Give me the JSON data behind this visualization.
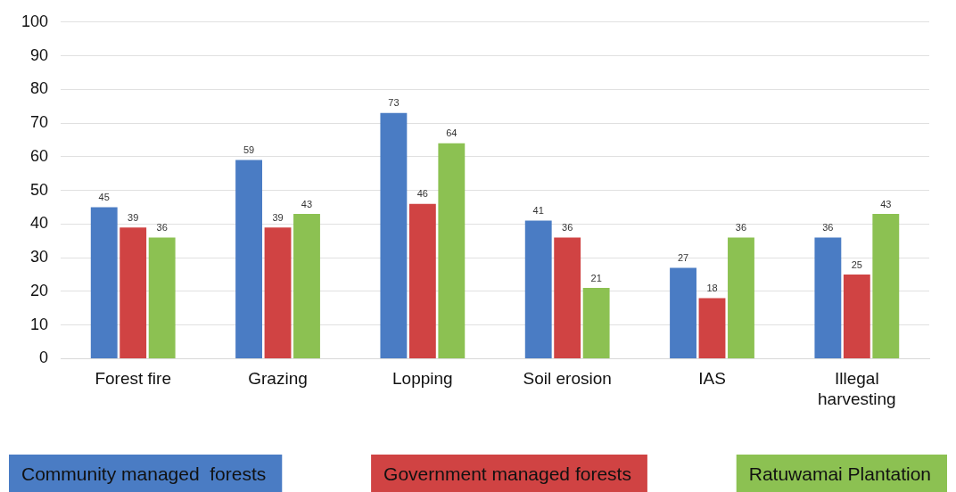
{
  "chart_data": {
    "type": "bar",
    "categories": [
      "Forest fire",
      "Grazing",
      "Lopping",
      "Soil erosion",
      "IAS",
      "Illegal harvesting"
    ],
    "series": [
      {
        "name": "Community managed  forests",
        "color": "#4a7cc4",
        "values": [
          45,
          59,
          73,
          41,
          27,
          36
        ]
      },
      {
        "name": "Government managed forests",
        "color": "#d04343",
        "values": [
          39,
          39,
          46,
          36,
          18,
          25
        ]
      },
      {
        "name": "Ratuwamai Plantation",
        "color": "#8cc152",
        "values": [
          36,
          43,
          64,
          21,
          36,
          43
        ]
      }
    ],
    "ylim": [
      0,
      100
    ],
    "yticks": [
      0,
      10,
      20,
      30,
      40,
      50,
      60,
      70,
      80,
      90,
      100
    ],
    "grid": "y",
    "legend": "bottom",
    "data_labels": true
  }
}
